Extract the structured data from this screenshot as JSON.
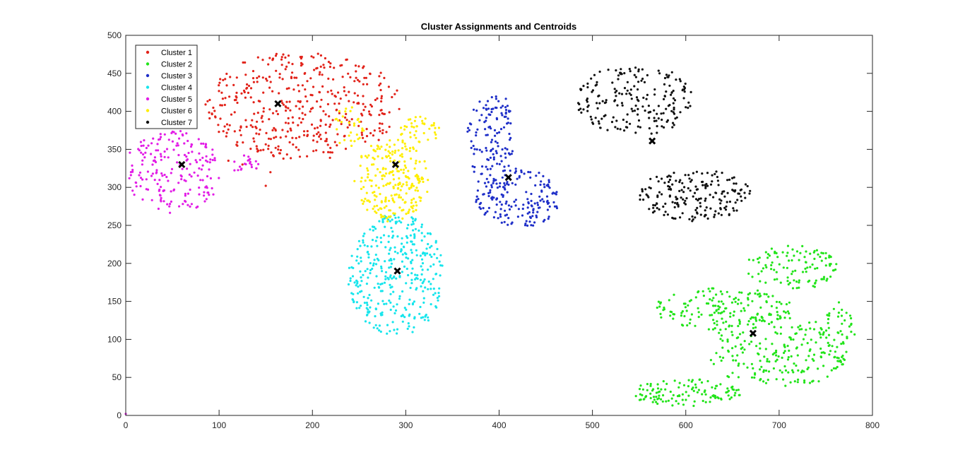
{
  "chart_data": {
    "type": "scatter",
    "title": "Cluster Assignments and Centroids",
    "xlabel": "",
    "ylabel": "",
    "xlim": [
      0,
      800
    ],
    "ylim": [
      0,
      500
    ],
    "xticks": [
      0,
      100,
      200,
      300,
      400,
      500,
      600,
      700,
      800
    ],
    "yticks": [
      0,
      50,
      100,
      150,
      200,
      250,
      300,
      350,
      400,
      450,
      500
    ],
    "grid": false,
    "legend_position": "top-left",
    "series": [
      {
        "name": "Cluster 1",
        "color": "#e2231a",
        "regions": [
          {
            "cx": 190,
            "cy": 408,
            "rx": 105,
            "ry": 72,
            "n": 420
          }
        ],
        "extra_points": [
          [
            125,
            330
          ],
          [
            140,
            325
          ],
          [
            110,
            335
          ],
          [
            155,
            320
          ],
          [
            150,
            302
          ]
        ]
      },
      {
        "name": "Cluster 2",
        "color": "#22e41a",
        "regions": [
          {
            "cx": 600,
            "cy": 30,
            "rx": 60,
            "ry": 18,
            "n": 120
          },
          {
            "cx": 700,
            "cy": 85,
            "rx": 80,
            "ry": 48,
            "n": 220
          },
          {
            "cx": 640,
            "cy": 140,
            "rx": 75,
            "ry": 28,
            "n": 160
          },
          {
            "cx": 715,
            "cy": 195,
            "rx": 50,
            "ry": 30,
            "n": 110
          },
          {
            "cx": 765,
            "cy": 110,
            "rx": 18,
            "ry": 40,
            "n": 40
          }
        ],
        "extra_points": []
      },
      {
        "name": "Cluster 3",
        "color": "#1f2fc8",
        "regions": [
          {
            "cx": 390,
            "cy": 360,
            "rx": 25,
            "ry": 60,
            "n": 110
          },
          {
            "cx": 420,
            "cy": 285,
            "rx": 45,
            "ry": 40,
            "n": 170
          },
          {
            "cx": 395,
            "cy": 405,
            "rx": 18,
            "ry": 18,
            "n": 20
          }
        ],
        "extra_points": []
      },
      {
        "name": "Cluster 4",
        "color": "#17e5ec",
        "regions": [
          {
            "cx": 290,
            "cy": 185,
            "rx": 52,
            "ry": 80,
            "n": 360
          }
        ],
        "extra_points": []
      },
      {
        "name": "Cluster 5",
        "color": "#e21de6",
        "regions": [
          {
            "cx": 50,
            "cy": 320,
            "rx": 52,
            "ry": 55,
            "n": 200
          },
          {
            "cx": 128,
            "cy": 330,
            "rx": 15,
            "ry": 12,
            "n": 20
          }
        ],
        "extra_points": [
          [
            0,
            2
          ]
        ]
      },
      {
        "name": "Cluster 6",
        "color": "#ffee00",
        "regions": [
          {
            "cx": 285,
            "cy": 310,
            "rx": 40,
            "ry": 55,
            "n": 240
          },
          {
            "cx": 315,
            "cy": 375,
            "rx": 22,
            "ry": 18,
            "n": 40
          },
          {
            "cx": 240,
            "cy": 380,
            "rx": 18,
            "ry": 28,
            "n": 30
          }
        ],
        "extra_points": []
      },
      {
        "name": "Cluster 7",
        "color": "#111111",
        "regions": [
          {
            "cx": 545,
            "cy": 415,
            "rx": 62,
            "ry": 48,
            "n": 200
          },
          {
            "cx": 610,
            "cy": 290,
            "rx": 60,
            "ry": 35,
            "n": 190
          }
        ],
        "extra_points": []
      }
    ],
    "centroids": [
      {
        "x": 163,
        "y": 410
      },
      {
        "x": 672,
        "y": 108
      },
      {
        "x": 410,
        "y": 313
      },
      {
        "x": 291,
        "y": 190
      },
      {
        "x": 60,
        "y": 330
      },
      {
        "x": 289,
        "y": 330
      },
      {
        "x": 564,
        "y": 361
      }
    ]
  }
}
